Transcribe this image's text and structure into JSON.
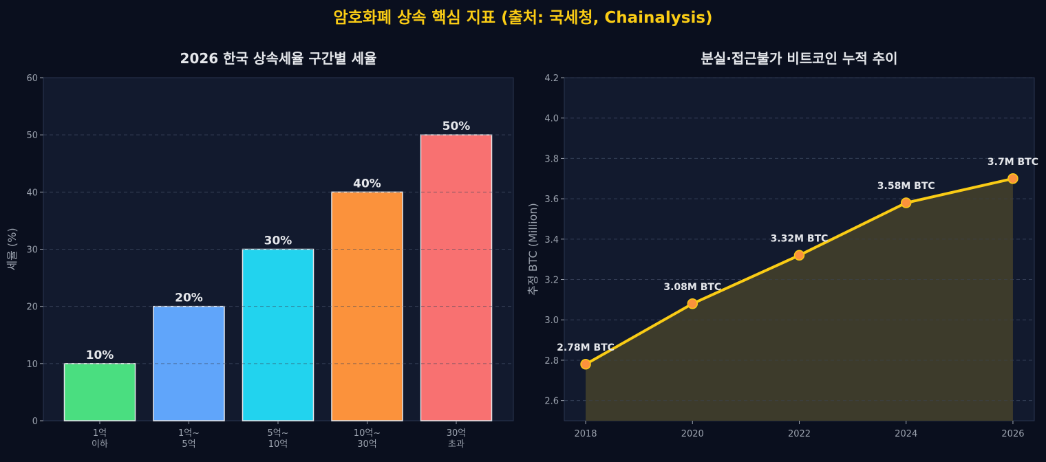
{
  "suptitle": "암호화폐 상속 핵심 지표 (출처: 국세청, Chainalysis)",
  "colors": {
    "background": "#0a0f1e",
    "plot_bg": "#121a2e",
    "title": "#facc15",
    "text": "#e5e7eb",
    "tick": "#9ca3af",
    "line": "#facc15",
    "marker": "#fb923c",
    "fill": "#3d3b2b"
  },
  "chart_data": [
    {
      "type": "bar",
      "title": "2026 한국 상속세율 구간별 세율",
      "xlabel": "",
      "ylabel": "세율 (%)",
      "categories": [
        "1억\n이하",
        "1억~\n5억",
        "5억~\n10억",
        "10억~\n30억",
        "30억\n초과"
      ],
      "values": [
        10,
        20,
        30,
        40,
        50
      ],
      "data_labels": [
        "10%",
        "20%",
        "30%",
        "40%",
        "50%"
      ],
      "bar_colors": [
        "#4ade80",
        "#60a5fa",
        "#22d3ee",
        "#fb923c",
        "#f87171"
      ],
      "ylim": [
        0,
        60
      ],
      "yticks": [
        0,
        10,
        20,
        30,
        40,
        50,
        60
      ],
      "grid": true
    },
    {
      "type": "area",
      "title": "분실·접근불가 비트코인 누적 추이",
      "xlabel": "",
      "ylabel": "추정 BTC (Million)",
      "x": [
        2018,
        2020,
        2022,
        2024,
        2026
      ],
      "values": [
        2.78,
        3.08,
        3.32,
        3.58,
        3.7
      ],
      "data_labels": [
        "2.78M BTC",
        "3.08M BTC",
        "3.32M BTC",
        "3.58M BTC",
        "3.7M BTC"
      ],
      "xlim": [
        2017.6,
        2026.4
      ],
      "ylim": [
        2.5,
        4.2
      ],
      "xticks": [
        2018,
        2020,
        2022,
        2024,
        2026
      ],
      "yticks": [
        2.6,
        2.8,
        3.0,
        3.2,
        3.4,
        3.6,
        3.8,
        4.0,
        4.2
      ],
      "grid": true
    }
  ]
}
